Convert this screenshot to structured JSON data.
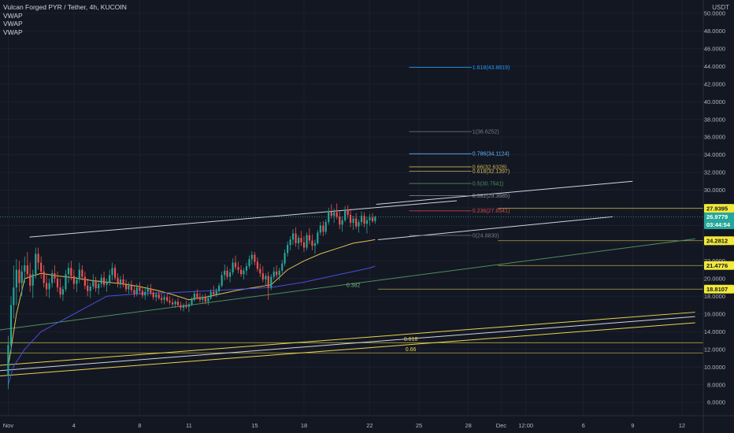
{
  "legend": {
    "title": "Vulcan Forged PYR / Tether, 4h, KUCOIN",
    "indicators": [
      "VWAP",
      "VWAP",
      "VWAP"
    ]
  },
  "axis": {
    "unit": "USDT"
  },
  "chart_data": {
    "type": "candlestick",
    "title": "Vulcan Forged PYR / Tether, 4h, KUCOIN",
    "ylim": [
      4.5,
      51.5
    ],
    "y_ticks": [
      "6.0000",
      "8.0000",
      "10.0000",
      "12.0000",
      "14.0000",
      "16.0000",
      "18.0000",
      "20.0000",
      "22.0000",
      "24.0000",
      "26.0000",
      "28.0000",
      "30.0000",
      "32.0000",
      "34.0000",
      "36.0000",
      "38.0000",
      "40.0000",
      "42.0000",
      "44.0000",
      "46.0000",
      "48.0000",
      "50.0000"
    ],
    "x_ticks": [
      "Nov",
      "4",
      "8",
      "11",
      "15",
      "18",
      "22",
      "25",
      "28",
      "Dec",
      "12:00",
      "6",
      "9",
      "12"
    ],
    "x_tick_days": [
      0,
      4,
      8,
      11,
      15,
      18,
      22,
      25,
      28,
      30,
      31.5,
      35,
      38,
      41
    ],
    "x_range_days": [
      -0.5,
      42.3
    ],
    "price_badges": [
      {
        "label": "27.9395",
        "value": 27.9395,
        "bg": "#f2e93b",
        "fg": "#131722"
      },
      {
        "label": "26.9779",
        "value": 26.9779,
        "bg": "#26a69a",
        "fg": "#ffffff"
      },
      {
        "label": "03:44:54",
        "value": 25.9,
        "bg": "#26a69a",
        "fg": "#ffffff"
      },
      {
        "label": "24.2812",
        "value": 24.2812,
        "bg": "#f2e93b",
        "fg": "#131722"
      },
      {
        "label": "21.4776",
        "value": 21.4776,
        "bg": "#f2e93b",
        "fg": "#131722"
      },
      {
        "label": "18.8107",
        "value": 18.8107,
        "bg": "#f2e93b",
        "fg": "#131722"
      }
    ],
    "fib_levels": [
      {
        "label": "1.618(43.8819)",
        "price": 43.8819,
        "color": "#2196f3"
      },
      {
        "label": "1(36.6252)",
        "price": 36.6252,
        "color": "#787b86"
      },
      {
        "label": "0.786(34.1124)",
        "price": 34.1124,
        "color": "#64b5f6"
      },
      {
        "label": "0.66(32.6328)",
        "price": 32.6328,
        "color": "#c9b458"
      },
      {
        "label": "0.618(32.1397)",
        "price": 32.1397,
        "color": "#c9b458"
      },
      {
        "label": "0.5(30.7541)",
        "price": 30.7541,
        "color": "#4c8f5e"
      },
      {
        "label": "0.382(29.3685)",
        "price": 29.3685,
        "color": "#8c8f99"
      },
      {
        "label": "0.236(27.6541)",
        "price": 27.6541,
        "color": "#d94a4a"
      },
      {
        "label": "0(24.8830)",
        "price": 24.883,
        "color": "#787b86"
      }
    ],
    "horizontal_levels": [
      {
        "price": 27.9395,
        "color": "#c9c04a",
        "from_day": 29.8
      },
      {
        "price": 24.2812,
        "color": "#c9c04a",
        "from_day": 29.8
      },
      {
        "price": 21.4776,
        "color": "#c9c04a",
        "from_day": 29.8
      },
      {
        "price": 18.8107,
        "color": "#c9c04a",
        "from_day": 22.5
      },
      {
        "price": 12.75,
        "color": "#c9c04a",
        "from_day": -0.5
      },
      {
        "price": 11.6,
        "color": "#c9c04a",
        "from_day": -0.5
      }
    ],
    "channel_labels": [
      {
        "label": "0.382",
        "day": 21.0,
        "price": 19.05,
        "color": "#6cb57a"
      },
      {
        "label": "0.618",
        "day": 24.5,
        "price": 12.95,
        "color": "#e8d44d"
      },
      {
        "label": "0.66",
        "day": 24.5,
        "price": 11.8,
        "color": "#e8d44d"
      }
    ],
    "trend_lines": [
      {
        "points": [
          [
            1.3,
            24.7
          ],
          [
            27.3,
            28.8
          ]
        ],
        "color": "#d1d4dc"
      },
      {
        "points": [
          [
            22.5,
            24.4
          ],
          [
            36.8,
            27.0
          ]
        ],
        "color": "#d1d4dc"
      },
      {
        "points": [
          [
            22.4,
            28.4
          ],
          [
            38.0,
            31.0
          ]
        ],
        "color": "#d1d4dc"
      },
      {
        "points": [
          [
            -0.5,
            14.2
          ],
          [
            41.8,
            24.5
          ]
        ],
        "color": "#4c8f5e"
      },
      {
        "points": [
          [
            -0.5,
            10.2
          ],
          [
            41.8,
            16.2
          ]
        ],
        "color": "#e8d44d"
      },
      {
        "points": [
          [
            -0.5,
            9.6
          ],
          [
            41.8,
            15.7
          ]
        ],
        "color": "#d1d4dc"
      },
      {
        "points": [
          [
            -0.5,
            9.0
          ],
          [
            41.8,
            15.0
          ]
        ],
        "color": "#e8d44d"
      }
    ],
    "ohlc": [
      [
        0,
        9.0,
        13.5,
        7.5,
        12.5
      ],
      [
        0.17,
        12.5,
        18.0,
        11.5,
        17.0
      ],
      [
        0.33,
        17.0,
        21.5,
        15.5,
        19.0
      ],
      [
        0.5,
        19.0,
        22.2,
        17.0,
        21.0
      ],
      [
        0.67,
        21.0,
        22.0,
        18.5,
        19.5
      ],
      [
        0.83,
        19.5,
        21.5,
        18.0,
        20.8
      ],
      [
        1,
        20.8,
        22.5,
        19.5,
        21.5
      ],
      [
        1.17,
        21.5,
        23.0,
        20.0,
        20.5
      ],
      [
        1.33,
        20.5,
        21.8,
        18.5,
        19.2
      ],
      [
        1.5,
        19.2,
        21.0,
        17.8,
        20.5
      ],
      [
        1.67,
        20.5,
        23.5,
        20.0,
        22.8
      ],
      [
        1.83,
        22.8,
        23.5,
        21.0,
        21.8
      ],
      [
        2,
        21.8,
        22.5,
        20.0,
        20.8
      ],
      [
        2.17,
        20.8,
        21.5,
        19.0,
        19.5
      ],
      [
        2.33,
        19.5,
        20.5,
        18.0,
        18.8
      ],
      [
        2.5,
        18.8,
        20.0,
        17.8,
        19.5
      ],
      [
        2.67,
        19.5,
        21.0,
        19.0,
        20.6
      ],
      [
        2.83,
        20.6,
        21.5,
        19.5,
        20.0
      ],
      [
        3,
        20.0,
        20.8,
        18.5,
        19.0
      ],
      [
        3.17,
        19.0,
        20.0,
        17.8,
        18.2
      ],
      [
        3.33,
        18.2,
        19.2,
        17.5,
        18.8
      ],
      [
        3.5,
        18.8,
        21.0,
        18.5,
        20.5
      ],
      [
        3.67,
        20.5,
        21.8,
        19.5,
        21.2
      ],
      [
        3.83,
        21.2,
        22.0,
        19.8,
        20.3
      ],
      [
        4,
        20.3,
        21.0,
        18.8,
        19.4
      ],
      [
        4.17,
        19.4,
        20.2,
        18.5,
        19.9
      ],
      [
        4.33,
        19.9,
        21.8,
        19.5,
        21.0
      ],
      [
        4.5,
        21.0,
        21.5,
        19.8,
        20.2
      ],
      [
        4.67,
        20.2,
        20.8,
        18.8,
        19.2
      ],
      [
        4.83,
        19.2,
        20.0,
        18.0,
        18.6
      ],
      [
        5,
        18.6,
        19.5,
        17.8,
        19.1
      ],
      [
        5.17,
        19.1,
        20.5,
        18.8,
        19.8
      ],
      [
        5.33,
        19.8,
        20.2,
        18.5,
        18.9
      ],
      [
        5.5,
        18.9,
        19.8,
        18.2,
        19.4
      ],
      [
        5.67,
        19.4,
        20.5,
        19.0,
        20.1
      ],
      [
        5.83,
        20.1,
        20.8,
        19.0,
        19.3
      ],
      [
        6,
        19.3,
        20.0,
        18.5,
        19.6
      ],
      [
        6.17,
        19.6,
        21.0,
        19.2,
        20.4
      ],
      [
        6.33,
        20.4,
        21.8,
        19.8,
        21.2
      ],
      [
        6.5,
        21.2,
        21.6,
        19.8,
        20.1
      ],
      [
        6.67,
        20.1,
        20.6,
        19.0,
        19.5
      ],
      [
        6.83,
        19.5,
        20.3,
        18.9,
        19.9
      ],
      [
        7,
        19.9,
        20.5,
        19.0,
        19.3
      ],
      [
        7.17,
        19.3,
        19.9,
        18.5,
        18.8
      ],
      [
        7.33,
        18.8,
        19.6,
        18.3,
        19.2
      ],
      [
        7.5,
        19.2,
        19.8,
        18.4,
        18.7
      ],
      [
        7.67,
        18.7,
        19.2,
        17.9,
        18.3
      ],
      [
        7.83,
        18.3,
        19.4,
        18.0,
        19.0
      ],
      [
        8,
        19.0,
        19.6,
        18.2,
        18.6
      ],
      [
        8.17,
        18.6,
        19.0,
        17.8,
        18.1
      ],
      [
        8.33,
        18.1,
        18.9,
        17.6,
        18.5
      ],
      [
        8.5,
        18.5,
        19.3,
        18.0,
        18.9
      ],
      [
        8.67,
        18.9,
        19.4,
        18.1,
        18.4
      ],
      [
        8.83,
        18.4,
        18.8,
        17.6,
        17.9
      ],
      [
        9,
        17.9,
        18.5,
        17.4,
        18.2
      ],
      [
        9.17,
        18.2,
        18.7,
        17.6,
        17.8
      ],
      [
        9.33,
        17.8,
        18.3,
        17.2,
        17.6
      ],
      [
        9.5,
        17.6,
        18.2,
        17.1,
        17.9
      ],
      [
        9.67,
        17.9,
        18.4,
        17.3,
        17.5
      ],
      [
        9.83,
        17.5,
        18.0,
        17.0,
        17.3
      ],
      [
        10,
        17.3,
        17.8,
        16.8,
        17.1
      ],
      [
        10.17,
        17.1,
        17.6,
        16.7,
        17.4
      ],
      [
        10.33,
        17.4,
        17.8,
        16.8,
        17.0
      ],
      [
        10.5,
        17.0,
        17.4,
        16.4,
        16.7
      ],
      [
        10.67,
        16.7,
        17.2,
        16.3,
        17.0
      ],
      [
        10.83,
        17.0,
        17.5,
        16.6,
        16.8
      ],
      [
        11,
        16.8,
        17.3,
        16.2,
        17.1
      ],
      [
        11.17,
        17.1,
        17.9,
        16.9,
        17.6
      ],
      [
        11.33,
        17.6,
        18.6,
        17.4,
        18.3
      ],
      [
        11.5,
        18.3,
        18.8,
        17.6,
        17.9
      ],
      [
        11.67,
        17.9,
        18.4,
        17.3,
        17.6
      ],
      [
        11.83,
        17.6,
        18.2,
        17.2,
        17.9
      ],
      [
        12,
        17.9,
        18.3,
        17.1,
        17.4
      ],
      [
        12.17,
        17.4,
        18.1,
        17.0,
        17.8
      ],
      [
        12.33,
        17.8,
        18.8,
        17.6,
        18.5
      ],
      [
        12.5,
        18.5,
        19.2,
        18.0,
        18.2
      ],
      [
        12.67,
        18.2,
        18.9,
        17.9,
        18.6
      ],
      [
        12.83,
        18.6,
        19.5,
        18.3,
        19.2
      ],
      [
        13,
        19.2,
        20.8,
        19.0,
        20.4
      ],
      [
        13.17,
        20.4,
        21.6,
        19.8,
        20.9
      ],
      [
        13.33,
        20.9,
        21.4,
        19.9,
        20.2
      ],
      [
        13.5,
        20.2,
        21.1,
        19.6,
        20.7
      ],
      [
        13.67,
        20.7,
        22.3,
        20.4,
        21.8
      ],
      [
        13.83,
        21.8,
        22.6,
        21.0,
        21.3
      ],
      [
        14,
        21.3,
        21.9,
        20.6,
        21.0
      ],
      [
        14.17,
        21.0,
        21.5,
        20.2,
        20.5
      ],
      [
        14.33,
        20.5,
        21.2,
        19.9,
        20.9
      ],
      [
        14.5,
        20.9,
        21.8,
        20.4,
        21.4
      ],
      [
        14.67,
        21.4,
        22.6,
        21.1,
        22.2
      ],
      [
        14.83,
        22.2,
        23.1,
        21.6,
        22.7
      ],
      [
        15,
        22.7,
        23.0,
        21.5,
        21.9
      ],
      [
        15.17,
        21.9,
        22.4,
        20.8,
        21.1
      ],
      [
        15.33,
        21.1,
        21.7,
        20.2,
        20.6
      ],
      [
        15.5,
        20.6,
        21.4,
        19.6,
        19.9
      ],
      [
        15.67,
        19.9,
        20.6,
        19.2,
        20.3
      ],
      [
        15.83,
        20.3,
        20.8,
        17.6,
        19.0
      ],
      [
        16,
        19.0,
        20.5,
        18.7,
        20.2
      ],
      [
        16.17,
        20.2,
        21.3,
        19.9,
        20.8
      ],
      [
        16.33,
        20.8,
        21.5,
        20.1,
        20.4
      ],
      [
        16.5,
        20.4,
        21.2,
        19.8,
        20.9
      ],
      [
        16.67,
        20.9,
        22.1,
        20.6,
        21.7
      ],
      [
        16.83,
        21.7,
        23.3,
        21.4,
        22.9
      ],
      [
        17,
        22.9,
        24.2,
        22.5,
        23.8
      ],
      [
        17.17,
        23.8,
        24.8,
        23.2,
        24.4
      ],
      [
        17.33,
        24.4,
        25.6,
        23.8,
        25.1
      ],
      [
        17.5,
        25.1,
        25.8,
        23.6,
        24.0
      ],
      [
        17.67,
        24.0,
        24.9,
        23.3,
        24.6
      ],
      [
        17.83,
        24.6,
        25.4,
        23.7,
        24.1
      ],
      [
        18,
        24.1,
        24.8,
        23.0,
        23.5
      ],
      [
        18.17,
        23.5,
        25.2,
        23.2,
        24.9
      ],
      [
        18.33,
        24.9,
        25.7,
        23.9,
        24.3
      ],
      [
        18.5,
        24.3,
        25.0,
        23.2,
        23.7
      ],
      [
        18.67,
        23.7,
        24.4,
        22.8,
        24.0
      ],
      [
        18.83,
        24.0,
        25.5,
        23.8,
        25.2
      ],
      [
        19,
        25.2,
        26.4,
        24.9,
        26.0
      ],
      [
        19.17,
        26.0,
        26.5,
        24.8,
        25.3
      ],
      [
        19.33,
        25.3,
        26.7,
        25.0,
        26.4
      ],
      [
        19.5,
        26.4,
        28.0,
        26.1,
        27.6
      ],
      [
        19.67,
        27.6,
        28.4,
        26.8,
        27.1
      ],
      [
        19.83,
        27.1,
        27.9,
        26.3,
        27.5
      ],
      [
        20,
        27.5,
        28.5,
        26.7,
        27.0
      ],
      [
        20.17,
        27.0,
        27.6,
        25.6,
        26.1
      ],
      [
        20.33,
        26.1,
        27.0,
        25.3,
        26.6
      ],
      [
        20.5,
        26.6,
        28.2,
        26.4,
        27.8
      ],
      [
        20.67,
        27.8,
        28.3,
        26.8,
        27.2
      ],
      [
        20.83,
        27.2,
        27.9,
        25.8,
        26.3
      ],
      [
        21,
        26.3,
        27.1,
        25.5,
        26.8
      ],
      [
        21.17,
        26.8,
        27.4,
        25.6,
        25.9
      ],
      [
        21.33,
        25.9,
        26.7,
        25.2,
        26.4
      ],
      [
        21.5,
        26.4,
        27.6,
        26.0,
        27.1
      ],
      [
        21.67,
        27.1,
        27.5,
        25.8,
        26.2
      ],
      [
        21.83,
        26.2,
        27.0,
        25.1,
        26.6
      ],
      [
        22,
        26.6,
        27.3,
        26.0,
        26.9
      ],
      [
        22.17,
        26.9,
        27.4,
        26.3,
        26.5
      ],
      [
        22.33,
        26.5,
        27.1,
        26.2,
        26.9779
      ]
    ],
    "vwap_series": [
      {
        "name": "VWAP",
        "color": "#e3c04f",
        "values": [
          [
            0,
            10
          ],
          [
            0.5,
            16
          ],
          [
            1,
            20
          ],
          [
            2,
            20.6
          ],
          [
            3,
            20.3
          ],
          [
            4,
            20.1
          ],
          [
            5,
            19.8
          ],
          [
            6,
            19.6
          ],
          [
            7,
            19.4
          ],
          [
            8,
            19.1
          ],
          [
            9,
            18.7
          ],
          [
            10,
            18.2
          ],
          [
            11,
            17.6
          ],
          [
            11.5,
            17.8
          ],
          [
            12,
            17.9
          ],
          [
            13,
            18.3
          ],
          [
            14,
            18.7
          ],
          [
            15,
            19.0
          ],
          [
            16,
            19.3
          ],
          [
            17,
            21.0
          ],
          [
            18,
            22.0
          ],
          [
            19,
            22.8
          ],
          [
            20,
            23.4
          ],
          [
            21,
            24.0
          ],
          [
            22,
            24.3
          ],
          [
            22.33,
            24.4
          ]
        ]
      },
      {
        "name": "VWAP",
        "color": "#4a4fd6",
        "values": [
          [
            0,
            8
          ],
          [
            0.3,
            10
          ],
          [
            1,
            12
          ],
          [
            2,
            14
          ],
          [
            4,
            16
          ],
          [
            6,
            18
          ],
          [
            8,
            18.3
          ],
          [
            10,
            18.4
          ],
          [
            12,
            18.6
          ],
          [
            14,
            18.8
          ],
          [
            16,
            19.0
          ],
          [
            18,
            19.6
          ],
          [
            20,
            20.4
          ],
          [
            22,
            21.2
          ],
          [
            22.33,
            21.4
          ]
        ]
      }
    ]
  }
}
